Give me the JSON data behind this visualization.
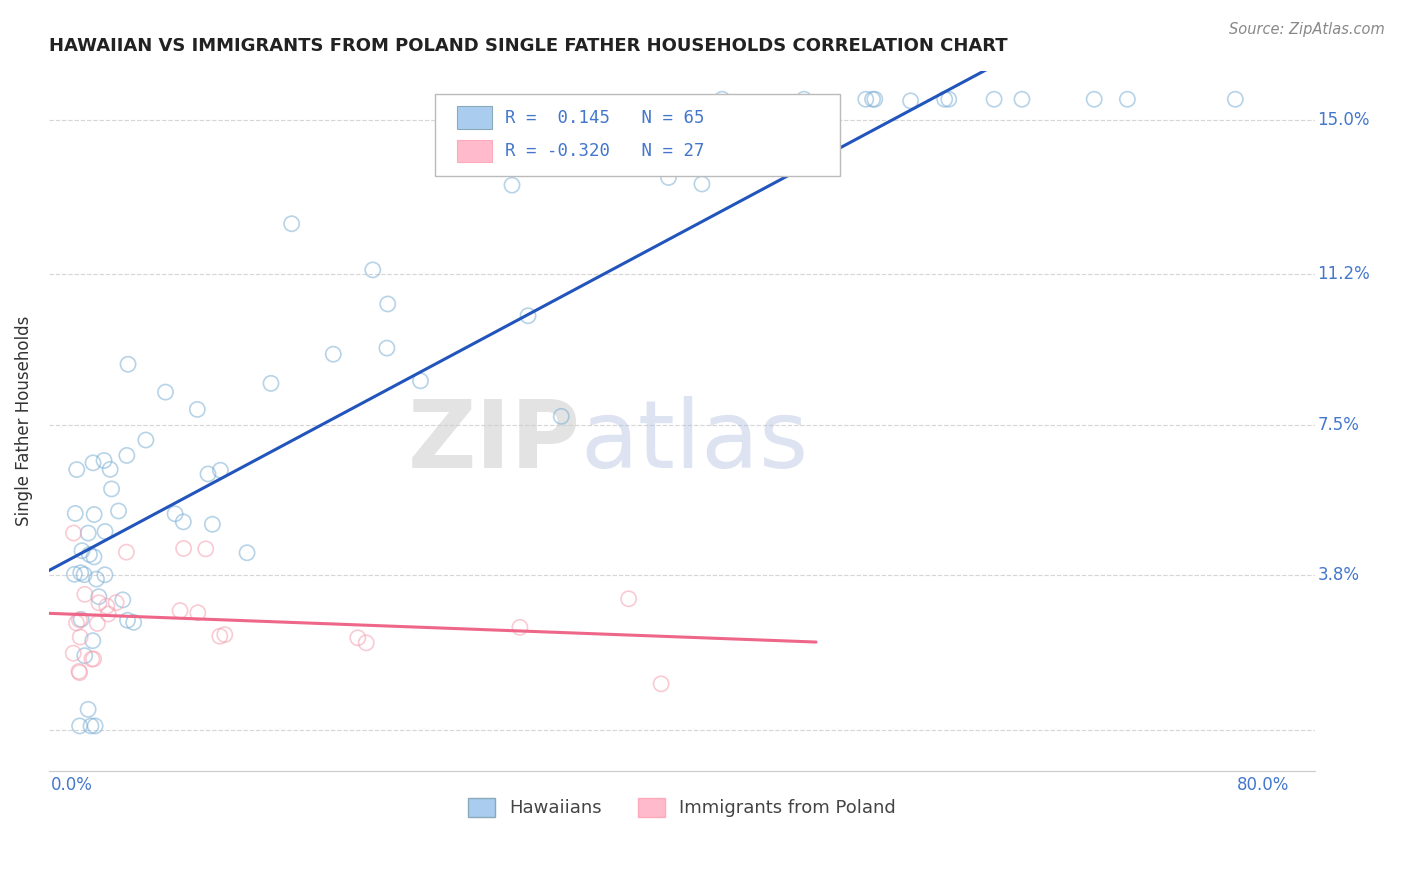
{
  "title": "HAWAIIAN VS IMMIGRANTS FROM POLAND SINGLE FATHER HOUSEHOLDS CORRELATION CHART",
  "source": "Source: ZipAtlas.com",
  "ylabel": "Single Father Households",
  "yticks": [
    0.0,
    0.038,
    0.075,
    0.112,
    0.15
  ],
  "ytick_labels": [
    "",
    "3.8%",
    "7.5%",
    "11.2%",
    "15.0%"
  ],
  "xticks": [
    0.0,
    0.1,
    0.2,
    0.3,
    0.4,
    0.5,
    0.6,
    0.7,
    0.8
  ],
  "xtick_labels": [
    "0.0%",
    "",
    "",
    "",
    "",
    "",
    "",
    "",
    "80.0%"
  ],
  "xlim": [
    -0.015,
    0.835
  ],
  "ylim": [
    -0.01,
    0.162
  ],
  "hawaiian_color": "#7BAFD4",
  "poland_color": "#F4A0B0",
  "legend_color_hawaiian": "#AACCEE",
  "legend_color_poland": "#FFBBCC",
  "trend_hawaiian_color": "#2255BB",
  "trend_poland_color": "#EE6688",
  "R_hawaiian": 0.145,
  "N_hawaiian": 65,
  "R_poland": -0.32,
  "N_poland": 27,
  "watermark_zip": "ZIP",
  "watermark_atlas": "atlas",
  "legend_label_hawaiian": "Hawaiians",
  "legend_label_poland": "Immigrants from Poland",
  "title_color": "#222222",
  "axis_label_color": "#4477CC",
  "ylabel_color": "#333333",
  "grid_color": "#CCCCCC",
  "source_color": "#888888",
  "background_color": "#FFFFFF",
  "scatter_alpha": 0.55,
  "scatter_size": 120,
  "scatter_linewidth": 1.2
}
